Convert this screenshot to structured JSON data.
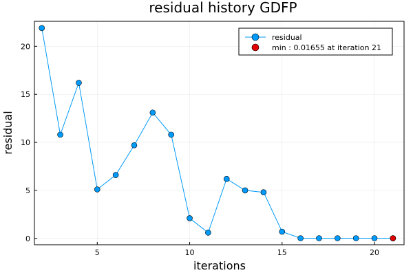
{
  "chart_data": {
    "type": "line",
    "title": "residual history GDFP",
    "xlabel": "iterations",
    "ylabel": "residual",
    "xlim": [
      1.6,
      21.6
    ],
    "ylim": [
      -0.66,
      22.6
    ],
    "xticks": [
      5,
      10,
      15,
      20
    ],
    "yticks": [
      0,
      5,
      10,
      15,
      20
    ],
    "grid": true,
    "legend_position": "top-right",
    "series": [
      {
        "name": "residual",
        "color": "#009AFA",
        "x": [
          2,
          3,
          4,
          5,
          6,
          7,
          8,
          9,
          10,
          11,
          12,
          13,
          14,
          15,
          16,
          17,
          18,
          19,
          20,
          21
        ],
        "y": [
          21.9,
          10.8,
          16.2,
          5.1,
          6.6,
          9.7,
          13.1,
          10.8,
          2.1,
          0.6,
          6.2,
          5.0,
          4.8,
          0.7,
          0.02,
          0.02,
          0.02,
          0.02,
          0.02,
          0.01655
        ]
      },
      {
        "name": "min : 0.01655 at iteration 21",
        "color": "#E30000",
        "x": [
          21
        ],
        "y": [
          0.01655
        ]
      }
    ]
  }
}
